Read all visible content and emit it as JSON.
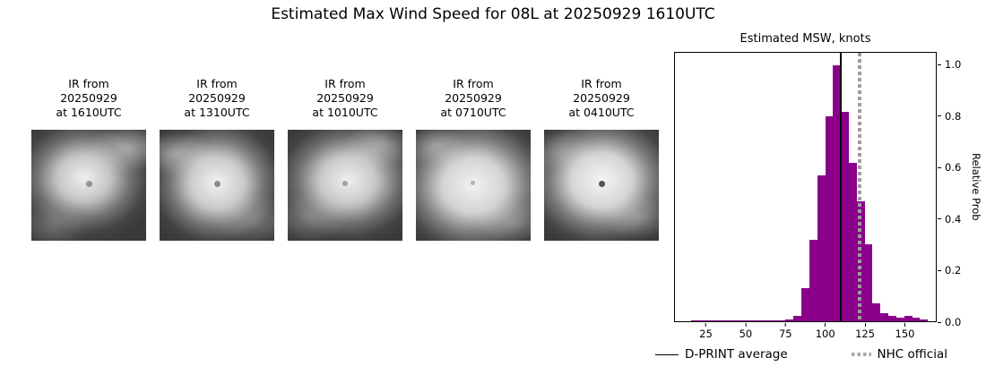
{
  "title": "Estimated Max Wind Speed for 08L at 20250929 1610UTC",
  "satellite_panels": [
    {
      "label": "IR from\n20250929\nat 1610UTC"
    },
    {
      "label": "IR from\n20250929\nat 1310UTC"
    },
    {
      "label": "IR from\n20250929\nat 1010UTC"
    },
    {
      "label": "IR from\n20250929\nat 0710UTC"
    },
    {
      "label": "IR from\n20250929\nat 0410UTC"
    }
  ],
  "chart_data": {
    "type": "bar",
    "title": "Estimated MSW, knots",
    "xlabel": "",
    "ylabel": "Relative Prob",
    "xlim": [
      5,
      170
    ],
    "ylim": [
      0,
      1.05
    ],
    "xticks": [
      25,
      50,
      75,
      100,
      125,
      150
    ],
    "yticks": [
      0.0,
      0.2,
      0.4,
      0.6,
      0.8,
      1.0
    ],
    "grid": false,
    "bar_color": "#8B008B",
    "bin_width": 5,
    "bin_left_edges": [
      15,
      20,
      25,
      30,
      35,
      40,
      45,
      50,
      55,
      60,
      65,
      70,
      75,
      80,
      85,
      90,
      95,
      100,
      105,
      110,
      115,
      120,
      125,
      130,
      135,
      140,
      145,
      150,
      155,
      160
    ],
    "values": [
      0.005,
      0.005,
      0.005,
      0.005,
      0.005,
      0.005,
      0.005,
      0.005,
      0.005,
      0.005,
      0.005,
      0.005,
      0.008,
      0.02,
      0.13,
      0.32,
      0.57,
      0.8,
      1.0,
      0.82,
      0.62,
      0.47,
      0.3,
      0.07,
      0.03,
      0.02,
      0.015,
      0.02,
      0.015,
      0.008
    ],
    "annotations": {
      "dprint_average_knots": 110,
      "nhc_official_knots": 122,
      "dprint_line_color": "#000000",
      "nhc_line_color": "#9e9e9e"
    },
    "legend": [
      {
        "label": "D-PRINT average",
        "style": "solid-black-line"
      },
      {
        "label": "NHC official",
        "style": "dotted-gray-line"
      }
    ],
    "legend_position": "bottom"
  }
}
